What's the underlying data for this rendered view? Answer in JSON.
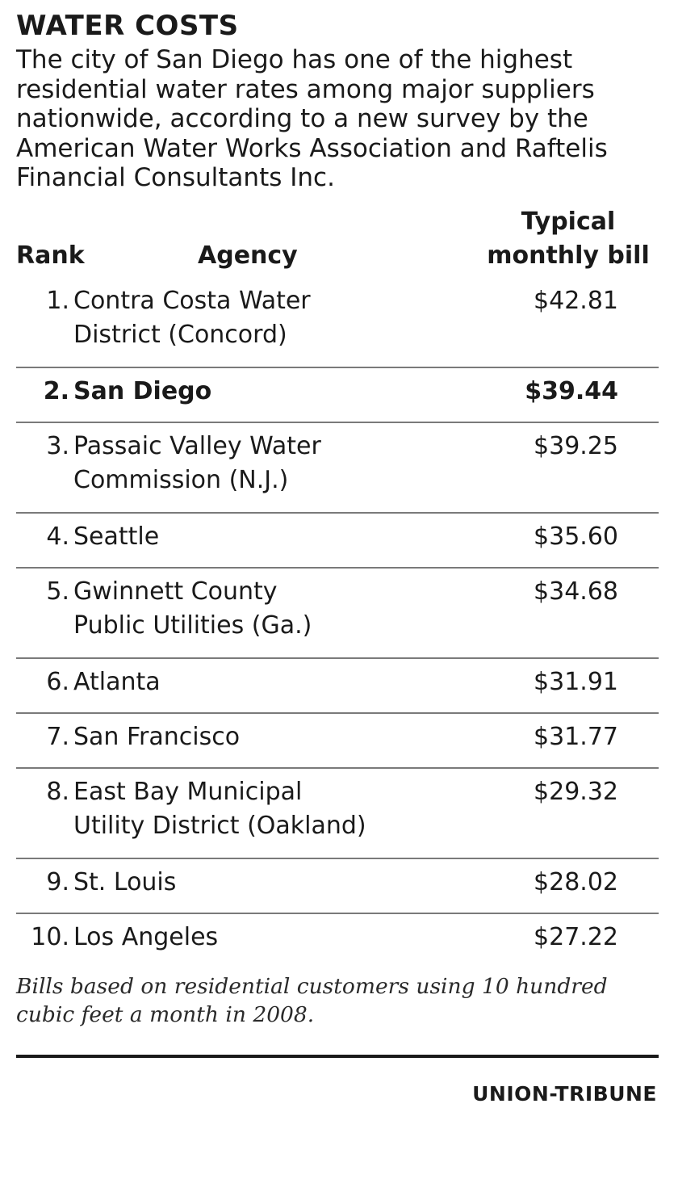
{
  "title": "WATER COSTS",
  "intro": "The city of San Diego has one of the highest residential water rates among major suppliers nationwide, according to a new survey by the American Water Works Association and Raftelis Financial Consultants Inc.",
  "chart_data": {
    "type": "table",
    "columns": {
      "rank": "Rank",
      "agency": "Agency",
      "bill_line1": "Typical",
      "bill_line2": "monthly bill"
    },
    "rows": [
      {
        "rank": "1.",
        "agency_lines": [
          "Contra Costa Water",
          "District (Concord)"
        ],
        "bill": "$42.81",
        "value": 42.81,
        "highlight": false
      },
      {
        "rank": "2.",
        "agency_lines": [
          "San Diego"
        ],
        "bill": "$39.44",
        "value": 39.44,
        "highlight": true
      },
      {
        "rank": "3.",
        "agency_lines": [
          "Passaic Valley Water",
          "Commission (N.J.)"
        ],
        "bill": "$39.25",
        "value": 39.25,
        "highlight": false
      },
      {
        "rank": "4.",
        "agency_lines": [
          "Seattle"
        ],
        "bill": "$35.60",
        "value": 35.6,
        "highlight": false
      },
      {
        "rank": "5.",
        "agency_lines": [
          "Gwinnett County",
          "Public Utilities (Ga.)"
        ],
        "bill": "$34.68",
        "value": 34.68,
        "highlight": false
      },
      {
        "rank": "6.",
        "agency_lines": [
          "Atlanta"
        ],
        "bill": "$31.91",
        "value": 31.91,
        "highlight": false
      },
      {
        "rank": "7.",
        "agency_lines": [
          "San Francisco"
        ],
        "bill": "$31.77",
        "value": 31.77,
        "highlight": false
      },
      {
        "rank": "8.",
        "agency_lines": [
          "East Bay Municipal",
          "Utility District (Oakland)"
        ],
        "bill": "$29.32",
        "value": 29.32,
        "highlight": false
      },
      {
        "rank": "9.",
        "agency_lines": [
          "St. Louis"
        ],
        "bill": "$28.02",
        "value": 28.02,
        "highlight": false
      },
      {
        "rank": "10.",
        "agency_lines": [
          "Los Angeles"
        ],
        "bill": "$27.22",
        "value": 27.22,
        "highlight": false
      }
    ],
    "note": "Bills based on residential customers using 10 hundred cubic feet a month in 2008."
  },
  "credit": "UNION-TRIBUNE"
}
